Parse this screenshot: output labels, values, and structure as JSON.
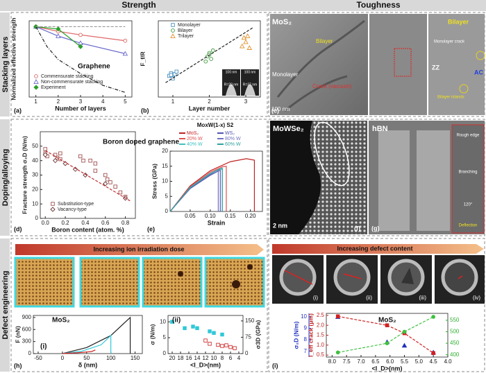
{
  "headers": {
    "left": "Strength",
    "right": "Toughness"
  },
  "rows": [
    "Stacking layers",
    "Doping/alloying",
    "Defect engineering"
  ],
  "letters": [
    "(a)",
    "(b)",
    "(c)",
    "(d)",
    "(e)",
    "(f)",
    "(g)",
    "(h)",
    "(i)"
  ],
  "banners": [
    "Increasing ion irradiation dose",
    "Increasing defect content"
  ],
  "images": {
    "b_inset": [
      "100 nm",
      "R=20 nm",
      "100 nm",
      "R=37 nm"
    ],
    "c": [
      "MoS₂",
      "Bilayer",
      "Monolayer",
      "Crack (vacuum)",
      "100 nm",
      "Bilayer",
      "Monolayer crack",
      "ZZ",
      "AC",
      "Bilayer islands"
    ],
    "f": [
      "MoWSe₂",
      "2 nm"
    ],
    "g": [
      "hBN",
      "Rough edge",
      "Branching",
      "120°",
      "Deflection"
    ],
    "defect": [
      "(i)",
      "(ii)",
      "(iii)",
      "(iv)"
    ]
  },
  "plots": {
    "a": {
      "type": "line",
      "xlabel": "Number of layers",
      "ylabel": "Normalized effective strength",
      "xlim": [
        0.7,
        5.3
      ],
      "ylim": [
        0.4,
        1.05
      ],
      "xticks": [
        1,
        2,
        3,
        4,
        5
      ],
      "yticks": [],
      "notes": [
        "Graphene"
      ],
      "series": [
        {
          "name": "Commensurate stacking",
          "color": "#e06666",
          "marker": "circle",
          "x": [
            1,
            2,
            3,
            5
          ],
          "values": [
            1,
            0.96,
            0.93,
            0.88
          ]
        },
        {
          "name": "Non-commensurate stacking",
          "color": "#6a6acd",
          "marker": "triangle",
          "x": [
            1,
            2,
            3,
            5
          ],
          "values": [
            1,
            0.92,
            0.86,
            0.77
          ]
        },
        {
          "name": "Experiment",
          "color": "#2ca02c",
          "marker": "diamond",
          "filled": true,
          "x": [
            1,
            2,
            3
          ],
          "values": [
            1,
            0.98,
            0.83
          ]
        },
        {
          "color": "#222222",
          "dash": "dashdot",
          "x": [
            1,
            1.5,
            2,
            3,
            4,
            5
          ],
          "values": [
            1,
            0.83,
            0.72,
            0.6,
            0.5,
            0.44
          ]
        },
        {
          "color": "#999999",
          "dash": "dashed",
          "x": [
            1,
            5
          ],
          "values": [
            1,
            1
          ]
        }
      ]
    },
    "b": {
      "type": "scatter",
      "xlabel": "Layer number",
      "ylabel": "F_f/R",
      "xlim": [
        0.6,
        3.4
      ],
      "ylim": [
        0,
        90
      ],
      "xticks": [
        1,
        2,
        3
      ],
      "yticks": [],
      "notes": [],
      "series": [
        {
          "name": "Monolayer",
          "color": "#4a90c0",
          "marker": "square",
          "line": false,
          "x": [
            0.9,
            0.95,
            1,
            1.05,
            1.1,
            1,
            0.95
          ],
          "values": [
            25,
            28,
            24,
            27,
            30,
            22,
            26
          ]
        },
        {
          "name": "Bilayer",
          "color": "#3a9a3a",
          "marker": "circle",
          "line": false,
          "x": [
            1.9,
            1.95,
            2,
            2.05,
            2.1,
            2
          ],
          "values": [
            42,
            48,
            52,
            45,
            55,
            50
          ]
        },
        {
          "name": "Trilayer",
          "color": "#e0902a",
          "marker": "triangle",
          "line": false,
          "x": [
            2.9,
            2.95,
            3,
            3.05,
            3.1
          ],
          "values": [
            60,
            70,
            65,
            72,
            58
          ]
        },
        {
          "color": "#222222",
          "dash": "dashed",
          "x": [
            0.8,
            3.2
          ],
          "values": [
            17,
            82
          ]
        }
      ]
    },
    "d": {
      "type": "scatter",
      "xlabel": "Boron content (atom. %)",
      "ylabel": "Fracture strength σ₂D (N/m)",
      "xlim": [
        -0.05,
        0.9
      ],
      "ylim": [
        0,
        60
      ],
      "xticks": [
        {
          "value": 0,
          "label": "0.0"
        },
        0.2,
        0.4,
        0.6,
        0.8
      ],
      "yticks": [
        0,
        10,
        20,
        30,
        40,
        50
      ],
      "notes": [
        "Boron doped graphene"
      ],
      "series": [
        {
          "name": "Substitution-type",
          "color": "#a05050",
          "marker": "square",
          "line": false,
          "x": [
            0,
            0,
            0.02,
            0.1,
            0.12,
            0.15,
            0.15,
            0.35,
            0.38,
            0.45,
            0.5,
            0.5,
            0.6,
            0.62,
            0.65,
            0.7,
            0.75,
            0.8
          ],
          "values": [
            48,
            45,
            43,
            44,
            42,
            41,
            45,
            43,
            40,
            40,
            38,
            33,
            30,
            27,
            25,
            22,
            18,
            15
          ]
        },
        {
          "name": "Vacancy-type",
          "color": "#6b3030",
          "marker": "diamond",
          "line": false,
          "x": [
            0,
            0.1,
            0.2,
            0.3,
            0.4,
            0.6,
            0.8
          ],
          "values": [
            44,
            40,
            38,
            34,
            30,
            24,
            14
          ]
        },
        {
          "color": "#c03030",
          "dash": "dashed",
          "x": [
            0,
            0.85
          ],
          "values": [
            47,
            12
          ]
        }
      ]
    },
    "e": {
      "type": "line",
      "title": "MoxW(1-x) S2",
      "xlabel": "Strain",
      "ylabel": "Stress (GPa)",
      "xlim": [
        0,
        0.23
      ],
      "ylim": [
        0,
        20
      ],
      "xticks": [
        0.05,
        {
          "value": 0.1,
          "label": "0.10"
        },
        0.15,
        {
          "value": 0.2,
          "label": "0.20"
        }
      ],
      "yticks": [
        0,
        5,
        10,
        15,
        20
      ],
      "notes": [],
      "series": [
        {
          "name": "MoS₂",
          "color": "#c02020",
          "x": [
            0,
            0.05,
            0.1,
            0.15,
            0.19,
            0.21,
            0.21
          ],
          "values": [
            0,
            8.5,
            13.5,
            16.5,
            17.5,
            17,
            0
          ]
        },
        {
          "name": "20% W",
          "color": "#e05050",
          "x": [
            0,
            0.05,
            0.1,
            0.13,
            0.14,
            0.14
          ],
          "values": [
            0,
            8.2,
            13,
            14.8,
            15,
            0
          ]
        },
        {
          "name": "40% W",
          "color": "#40c0c0",
          "x": [
            0,
            0.05,
            0.1,
            0.125,
            0.13,
            0.13
          ],
          "values": [
            0,
            8,
            12.6,
            14.2,
            14.4,
            0
          ]
        },
        {
          "name": "WS₂",
          "color": "#5050b0",
          "x": [
            0,
            0.05,
            0.1,
            0.12,
            0.125,
            0.125
          ],
          "values": [
            0,
            7.6,
            12,
            13.4,
            13.6,
            0
          ]
        },
        {
          "name": "80% W",
          "color": "#7070c0",
          "x": [
            0,
            0.05,
            0.1,
            0.115,
            0.12,
            0.12
          ],
          "values": [
            0,
            7.8,
            12.3,
            13.5,
            13.8,
            0
          ]
        },
        {
          "name": "60% W",
          "color": "#30a0a0",
          "x": [
            0,
            0.05,
            0.1,
            0.12,
            0.13,
            0.13
          ],
          "values": [
            0,
            7.9,
            12.5,
            13.8,
            14.1,
            0
          ]
        }
      ]
    },
    "h1": {
      "type": "line",
      "xlabel": "δ (nm)",
      "ylabel": "F (nN)",
      "xlim": [
        -60,
        165
      ],
      "ylim": [
        0,
        950
      ],
      "xticks": [
        -50,
        0,
        50,
        100,
        150
      ],
      "yticks": [
        0,
        300,
        600,
        900
      ],
      "notes": [
        "MoS₂",
        "(i)"
      ],
      "series": [
        {
          "color": "#222222",
          "x": [
            0,
            50,
            100,
            140,
            140
          ],
          "values": [
            0,
            150,
            450,
            900,
            0
          ]
        },
        {
          "color": "#30c8d8",
          "x": [
            0,
            40,
            80,
            100,
            100
          ],
          "values": [
            0,
            60,
            220,
            450,
            0
          ]
        },
        {
          "color": "#d02020",
          "x": [
            0,
            30,
            60,
            68
          ],
          "values": [
            0,
            20,
            50,
            90
          ]
        }
      ]
    },
    "h2": {
      "type": "scatter",
      "xlabel": "<l_D>(nm)",
      "ylabel": "σ (N/m)",
      "y2label": "σ3D (GPa)",
      "xlim": [
        21,
        3
      ],
      "ylim": [
        0,
        12
      ],
      "y2lim": [
        0,
        175
      ],
      "xticks": [
        20,
        18,
        16,
        14,
        12,
        10,
        8,
        6,
        4
      ],
      "yticks": [
        0,
        5,
        10
      ],
      "y2ticks": [
        0,
        75,
        150
      ],
      "notes": [
        "(ii)"
      ],
      "series": [
        {
          "color": "#30c8d8",
          "marker": "square",
          "filled": true,
          "line": false,
          "x": [
            20,
            17,
            15,
            14,
            11,
            10,
            8
          ],
          "values": [
            10,
            8,
            8.5,
            8,
            7,
            6.5,
            6
          ]
        },
        {
          "color": "#d03030",
          "marker": "square",
          "line": false,
          "axis": "y2",
          "x": [
            12,
            11,
            9,
            8,
            7,
            6,
            5
          ],
          "values": [
            60,
            45,
            40,
            35,
            38,
            30,
            25
          ]
        }
      ]
    },
    "i": {
      "type": "line",
      "xlabel": "<l_D>(nm)",
      "ylabel": "σ₂D (N/m)",
      "y2label": "l_eff crack (μm)",
      "xlim": [
        8.2,
        4.0
      ],
      "ylim": [
        6.5,
        10.3
      ],
      "y2lim": [
        0.4,
        2.6
      ],
      "y3lim": [
        390,
        580
      ],
      "xticks": [
        {
          "value": 8,
          "label": "8.0"
        },
        7.5,
        {
          "value": 7,
          "label": "7.0"
        },
        6.5,
        {
          "value": 6,
          "label": "6.0"
        },
        5.5,
        {
          "value": 5,
          "label": "5.0"
        },
        4.5,
        {
          "value": 4,
          "label": "4.0"
        }
      ],
      "yticks": [
        7,
        8,
        9,
        10
      ],
      "y2ticks": [
        0.5,
        {
          "value": 1,
          "label": "1.0"
        },
        1.5,
        {
          "value": 2,
          "label": "2.0"
        },
        2.5
      ],
      "y3ticks": [
        400,
        450,
        500,
        550
      ],
      "ycolor": "#2030c0",
      "y2color": "#c02020",
      "y3color": "#30b030",
      "notes": [
        "MoS₂"
      ],
      "series": [
        {
          "color": "#2030c0",
          "marker": "triangle",
          "filled": true,
          "line": false,
          "x": [
            7.8,
            6.1,
            5.5,
            4.5
          ],
          "values": [
            10,
            7.8,
            7.5,
            6.9
          ]
        },
        {
          "color": "#d02020",
          "marker": "square",
          "filled": true,
          "dash": "dashed",
          "axis": "y2",
          "x": [
            7.8,
            6.1,
            5.5,
            4.5
          ],
          "values": [
            2.45,
            2.0,
            1.6,
            0.6
          ]
        },
        {
          "color": "#40c040",
          "marker": "circle",
          "filled": true,
          "dash": "dashed",
          "axis": "y3",
          "x": [
            7.8,
            6.1,
            5.5,
            4.5
          ],
          "values": [
            410,
            450,
            500,
            565
          ]
        }
      ]
    }
  }
}
